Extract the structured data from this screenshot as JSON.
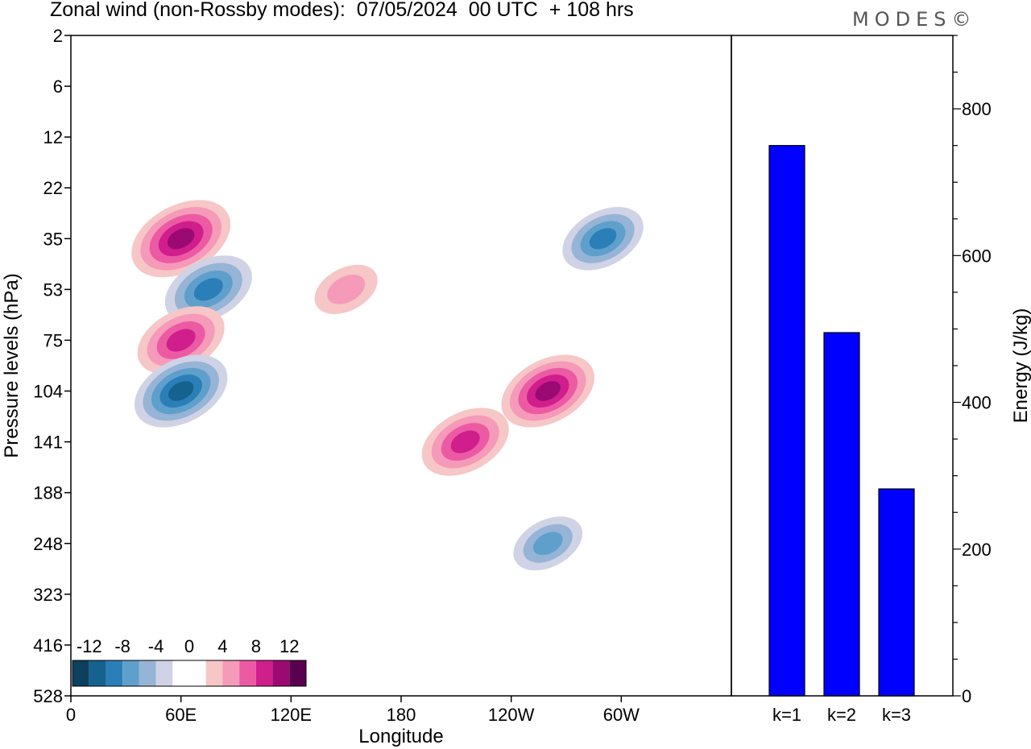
{
  "header": {
    "title": "Zonal wind (non-Rossby modes):  07/05/2024  00 UTC  + 108 hrs",
    "brand": "MODES©"
  },
  "colors": {
    "palette": [
      "#0d3f5f",
      "#15628f",
      "#2a7fb8",
      "#5f9fcb",
      "#96b4d6",
      "#cfd3e5",
      "#ffffff",
      "#ffffff",
      "#f7c6c6",
      "#f59ab8",
      "#ec5aa4",
      "#d01e8d",
      "#9b0a73",
      "#5a0050"
    ],
    "bar": "#0000ff"
  },
  "chart_data": [
    {
      "type": "heatmap",
      "xlabel": "Longitude",
      "ylabel": "Pressure levels (hPa)",
      "xticks": [
        "0",
        "60E",
        "120E",
        "180",
        "120W",
        "60W"
      ],
      "yticks": [
        "2",
        "6",
        "12",
        "22",
        "35",
        "53",
        "75",
        "104",
        "141",
        "188",
        "248",
        "323",
        "416",
        "528"
      ],
      "colorbar": {
        "labels": [
          "-12",
          "-8",
          "-4",
          "0",
          "4",
          "8",
          "12"
        ]
      },
      "features": [
        {
          "lon": 60,
          "level": "35",
          "value": 11
        },
        {
          "lon": 75,
          "level": "53",
          "value": -9
        },
        {
          "lon": 60,
          "level": "75",
          "value": 9
        },
        {
          "lon": 60,
          "level": "104",
          "value": -10
        },
        {
          "lon": 290,
          "level": "35",
          "value": -8
        },
        {
          "lon": 260,
          "level": "104",
          "value": 10
        },
        {
          "lon": 215,
          "level": "141",
          "value": 9
        },
        {
          "lon": 150,
          "level": "53",
          "value": 5
        },
        {
          "lon": 260,
          "level": "248",
          "value": -6
        }
      ]
    },
    {
      "type": "bar",
      "categories": [
        "k=1",
        "k=2",
        "k=3"
      ],
      "values": [
        750,
        495,
        282
      ],
      "ylabel": "Energy (J/kg)",
      "ylim": [
        0,
        900
      ],
      "yticks": [
        0,
        200,
        400,
        600,
        800
      ]
    }
  ]
}
